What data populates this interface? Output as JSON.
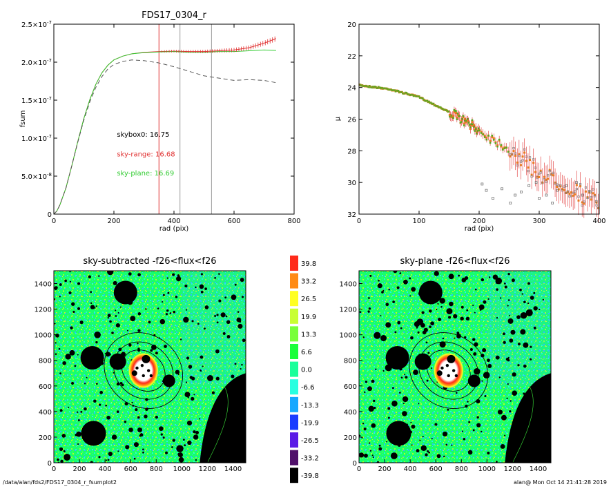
{
  "chart_data": [
    {
      "type": "line",
      "title": "FDS17_0304_r",
      "xlabel": "rad (pix)",
      "ylabel": "fsum",
      "xlim": [
        0,
        800
      ],
      "ylim": [
        0,
        2.5e-07
      ],
      "xticks": [
        0,
        200,
        400,
        600,
        800
      ],
      "yticks": [
        {
          "v": 0,
          "label": "0"
        },
        {
          "v": 5e-08,
          "m": "5.0",
          "e": "-8"
        },
        {
          "v": 1e-07,
          "m": "1.0",
          "e": "-7"
        },
        {
          "v": 1.5e-07,
          "m": "1.5",
          "e": "-7"
        },
        {
          "v": 2e-07,
          "m": "2.0",
          "e": "-7"
        },
        {
          "v": 2.5e-07,
          "m": "2.5",
          "e": "-7"
        }
      ],
      "vlines": [
        {
          "x": 350,
          "color": "#e03030"
        },
        {
          "x": 420,
          "color": "#999999"
        },
        {
          "x": 525,
          "color": "#999999"
        }
      ],
      "annotations": [
        {
          "text": "skybox0: 16.75",
          "x": 210,
          "y": 1.02e-07,
          "color": "#000000"
        },
        {
          "text": "sky-range: 16.68",
          "x": 210,
          "y": 7.6e-08,
          "color": "#e03030"
        },
        {
          "text": "sky-plane: 16.69",
          "x": 210,
          "y": 5.1e-08,
          "color": "#33cc33"
        }
      ],
      "series": [
        {
          "color": "#e03030",
          "style": "solid",
          "x": [
            0,
            10,
            20,
            40,
            60,
            80,
            100,
            120,
            140,
            160,
            180,
            200,
            230,
            260,
            300,
            350,
            400,
            450,
            500,
            550,
            600,
            650,
            700,
            740
          ],
          "y": [
            0,
            4e-09,
            1.2e-08,
            3.4e-08,
            6.4e-08,
            9.6e-08,
            1.26e-07,
            1.51e-07,
            1.71e-07,
            1.86e-07,
            1.96e-07,
            2.03e-07,
            2.08e-07,
            2.11e-07,
            2.13e-07,
            2.14e-07,
            2.145e-07,
            2.14e-07,
            2.14e-07,
            2.15e-07,
            2.16e-07,
            2.19e-07,
            2.25e-07,
            2.31e-07
          ]
        },
        {
          "color": "#33cc33",
          "style": "solid",
          "x": [
            0,
            10,
            20,
            40,
            60,
            80,
            100,
            120,
            140,
            160,
            180,
            200,
            230,
            260,
            300,
            350,
            400,
            450,
            500,
            550,
            600,
            650,
            700,
            740
          ],
          "y": [
            0,
            4e-09,
            1.2e-08,
            3.4e-08,
            6.4e-08,
            9.6e-08,
            1.26e-07,
            1.51e-07,
            1.71e-07,
            1.86e-07,
            1.96e-07,
            2.03e-07,
            2.08e-07,
            2.11e-07,
            2.125e-07,
            2.135e-07,
            2.14e-07,
            2.13e-07,
            2.13e-07,
            2.14e-07,
            2.14e-07,
            2.15e-07,
            2.16e-07,
            2.155e-07
          ]
        },
        {
          "color": "#555555",
          "style": "dashed",
          "x": [
            0,
            10,
            20,
            40,
            60,
            80,
            100,
            120,
            140,
            160,
            180,
            200,
            230,
            260,
            300,
            350,
            400,
            450,
            500,
            550,
            600,
            650,
            700,
            740
          ],
          "y": [
            0,
            4e-09,
            1.2e-08,
            3.4e-08,
            6.4e-08,
            9.5e-08,
            1.24e-07,
            1.48e-07,
            1.67e-07,
            1.81e-07,
            1.91e-07,
            1.97e-07,
            2.01e-07,
            2.03e-07,
            2.02e-07,
            1.99e-07,
            1.94e-07,
            1.88e-07,
            1.82e-07,
            1.79e-07,
            1.76e-07,
            1.77e-07,
            1.76e-07,
            1.73e-07
          ]
        }
      ]
    },
    {
      "type": "scatter",
      "title": "",
      "xlabel": "rad (pix)",
      "ylabel": "µ",
      "xlim": [
        0,
        400
      ],
      "ylim": [
        32,
        20
      ],
      "xticks": [
        0,
        100,
        200,
        300,
        400
      ],
      "yticks": [
        20,
        22,
        24,
        26,
        28,
        30,
        32
      ],
      "profile": [
        [
          0,
          23.85
        ],
        [
          50,
          24.1
        ],
        [
          100,
          24.6
        ],
        [
          150,
          25.55
        ],
        [
          200,
          26.7
        ],
        [
          250,
          27.9
        ],
        [
          300,
          29.4
        ],
        [
          350,
          30.3
        ],
        [
          400,
          31.4
        ]
      ],
      "outliers": [
        [
          205,
          30.1
        ],
        [
          212,
          30.5
        ],
        [
          223,
          31.0
        ],
        [
          238,
          30.4
        ],
        [
          252,
          31.3
        ],
        [
          260,
          30.8
        ],
        [
          270,
          30.6
        ],
        [
          283,
          30.2
        ],
        [
          295,
          30.0
        ],
        [
          300,
          31.0
        ],
        [
          322,
          31.3
        ],
        [
          330,
          30.5
        ],
        [
          345,
          30.2
        ],
        [
          362,
          30.0
        ],
        [
          372,
          30.8
        ],
        [
          385,
          30.6
        ],
        [
          395,
          31.2
        ],
        [
          312,
          30.8
        ]
      ]
    },
    {
      "type": "heatmap",
      "title": "sky-subtracted -f26<flux<f26",
      "xlim": [
        0,
        1500
      ],
      "ylim": [
        0,
        1500
      ],
      "xticks": [
        0,
        200,
        400,
        600,
        800,
        1000,
        1200,
        1400
      ],
      "yticks": [
        0,
        200,
        400,
        600,
        800,
        1000,
        1200,
        1400
      ]
    },
    {
      "type": "heatmap",
      "title": "sky-plane -f26<flux<f26",
      "xlim": [
        0,
        1500
      ],
      "ylim": [
        0,
        1500
      ],
      "xticks": [
        0,
        200,
        400,
        600,
        800,
        1000,
        1200,
        1400
      ],
      "yticks": [
        0,
        200,
        400,
        600,
        800,
        1000,
        1200,
        1400
      ]
    }
  ],
  "colorbar": {
    "levels": [
      {
        "label": "39.8",
        "color": "#ff2a1a"
      },
      {
        "label": "33.2",
        "color": "#ff8a14"
      },
      {
        "label": "26.5",
        "color": "#ffff22"
      },
      {
        "label": "19.9",
        "color": "#c8ff32"
      },
      {
        "label": "13.3",
        "color": "#78ff3a"
      },
      {
        "label": "6.6",
        "color": "#1aff3a"
      },
      {
        "label": "0.0",
        "color": "#1aff9a"
      },
      {
        "label": "-6.6",
        "color": "#28ffe0"
      },
      {
        "label": "-13.3",
        "color": "#16a8ff"
      },
      {
        "label": "-19.9",
        "color": "#1a3cff"
      },
      {
        "label": "-26.5",
        "color": "#5a1ae6"
      },
      {
        "label": "-33.2",
        "color": "#50106a"
      },
      {
        "label": "-39.8",
        "color": "#000000"
      }
    ]
  },
  "footer": {
    "path": "/data/alan/fds2/FDS17_0304_r_fsumplot2",
    "stamp": "alan@  Mon Oct 14 21:41:28 2019"
  }
}
